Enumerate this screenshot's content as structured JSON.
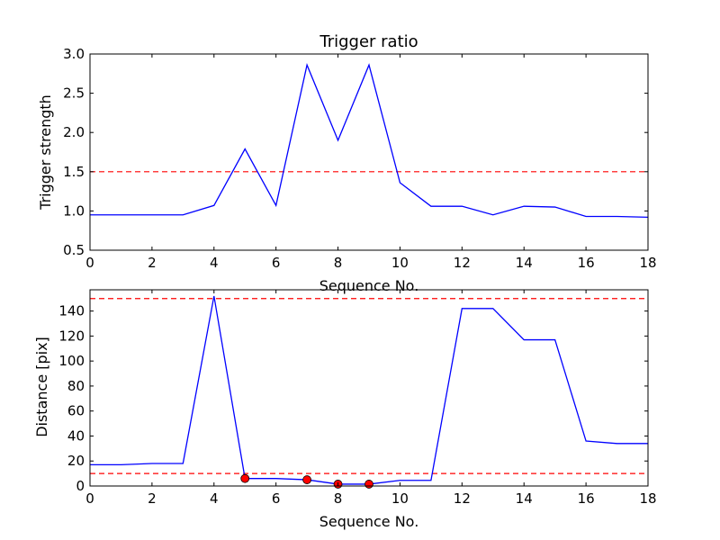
{
  "chart_data": [
    {
      "type": "line",
      "title": "Trigger ratio",
      "xlabel": "Sequence No.",
      "ylabel": "Trigger strength",
      "xlim": [
        0,
        18
      ],
      "ylim": [
        0.5,
        3.0
      ],
      "xticks": [
        "0",
        "2",
        "4",
        "6",
        "8",
        "10",
        "12",
        "14",
        "16",
        "18"
      ],
      "yticks": [
        "0.5",
        "1.0",
        "1.5",
        "2.0",
        "2.5",
        "3.0"
      ],
      "grid": false,
      "series": [
        {
          "color": "#0000ff",
          "style": "solid",
          "x": [
            0,
            1,
            2,
            3,
            4,
            5,
            6,
            7,
            8,
            9,
            10,
            11,
            12,
            13,
            14,
            15,
            16,
            17,
            18
          ],
          "y": [
            0.95,
            0.95,
            0.95,
            0.95,
            1.07,
            1.79,
            1.07,
            2.86,
            1.9,
            2.86,
            1.36,
            1.06,
            1.06,
            0.95,
            1.06,
            1.05,
            0.93,
            0.93,
            0.92
          ]
        }
      ],
      "hlines": [
        {
          "y": 1.5,
          "color": "#ff0000",
          "style": "dashed"
        }
      ]
    },
    {
      "type": "line",
      "title": "",
      "xlabel": "Sequence No.",
      "ylabel": "Distance [pix]",
      "xlim": [
        0,
        18
      ],
      "ylim": [
        0,
        157
      ],
      "xticks": [
        "0",
        "2",
        "4",
        "6",
        "8",
        "10",
        "12",
        "14",
        "16",
        "18"
      ],
      "yticks": [
        "0",
        "20",
        "40",
        "60",
        "80",
        "100",
        "120",
        "140"
      ],
      "grid": false,
      "series": [
        {
          "color": "#0000ff",
          "style": "solid",
          "x": [
            0,
            1,
            2,
            3,
            4,
            5,
            6,
            7,
            8,
            9,
            10,
            11,
            12,
            13,
            14,
            15,
            16,
            17,
            18
          ],
          "y": [
            17,
            17,
            18,
            18,
            152,
            6,
            6,
            5,
            1.5,
            1.5,
            4.5,
            4.5,
            142,
            142,
            117,
            117,
            36,
            34,
            34
          ]
        }
      ],
      "markers": {
        "color": "#ff0000",
        "x": [
          5,
          7,
          8,
          9
        ],
        "y": [
          6,
          5,
          1.5,
          1.5
        ]
      },
      "hlines": [
        {
          "y": 150,
          "color": "#ff0000",
          "style": "dashed"
        },
        {
          "y": 10,
          "color": "#ff0000",
          "style": "dashed"
        }
      ]
    }
  ]
}
